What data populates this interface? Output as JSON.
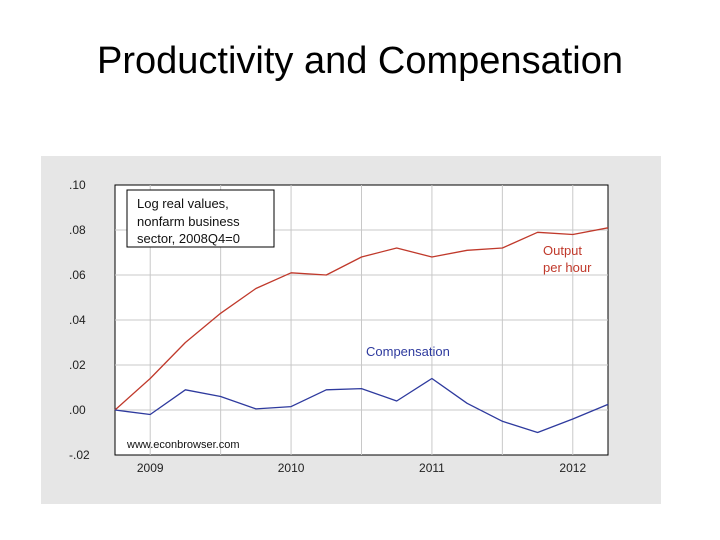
{
  "slide": {
    "title": "Productivity and Compensation"
  },
  "chart_data": {
    "type": "line",
    "title": "",
    "xlabel": "",
    "ylabel": "",
    "xlim": [
      2008.75,
      2012.25
    ],
    "ylim": [
      -0.02,
      0.1
    ],
    "yticks": [
      0.1,
      0.08,
      0.06,
      0.04,
      0.02,
      0.0,
      -0.02
    ],
    "ytick_labels": [
      ".10",
      ".08",
      ".06",
      ".04",
      ".02",
      ".00",
      "-.02"
    ],
    "xticks": [
      2009,
      2010,
      2011,
      2012
    ],
    "xtick_labels": [
      "2009",
      "2010",
      "2011",
      "2012"
    ],
    "grid": true,
    "colors": {
      "output": "#c0392b",
      "compensation": "#2e3a9e",
      "grid": "#c8c8c8",
      "plot_bg": "#ffffff",
      "frame_bg": "#e6e6e6"
    },
    "series": [
      {
        "name": "Output per hour",
        "x": [
          2008.75,
          2009.0,
          2009.25,
          2009.5,
          2009.75,
          2010.0,
          2010.25,
          2010.5,
          2010.75,
          2011.0,
          2011.25,
          2011.5,
          2011.75,
          2012.0,
          2012.25
        ],
        "values": [
          0.0,
          0.014,
          0.03,
          0.043,
          0.054,
          0.061,
          0.06,
          0.068,
          0.072,
          0.068,
          0.071,
          0.072,
          0.079,
          0.078,
          0.081
        ]
      },
      {
        "name": "Compensation",
        "x": [
          2008.75,
          2009.0,
          2009.25,
          2009.5,
          2009.75,
          2010.0,
          2010.25,
          2010.5,
          2010.75,
          2011.0,
          2011.25,
          2011.5,
          2011.75,
          2012.0,
          2012.25
        ],
        "values": [
          0.0,
          -0.002,
          0.009,
          0.006,
          0.0005,
          0.0015,
          0.009,
          0.0095,
          0.004,
          0.014,
          0.003,
          -0.005,
          -0.01,
          -0.004,
          0.0025
        ]
      }
    ],
    "annotations": {
      "note_box": [
        "Log real values,",
        "nonfarm business",
        "sector, 2008Q4=0"
      ],
      "output_label": [
        "Output",
        "per hour"
      ],
      "compensation_label": "Compensation",
      "source": "www.econbrowser.com"
    }
  }
}
